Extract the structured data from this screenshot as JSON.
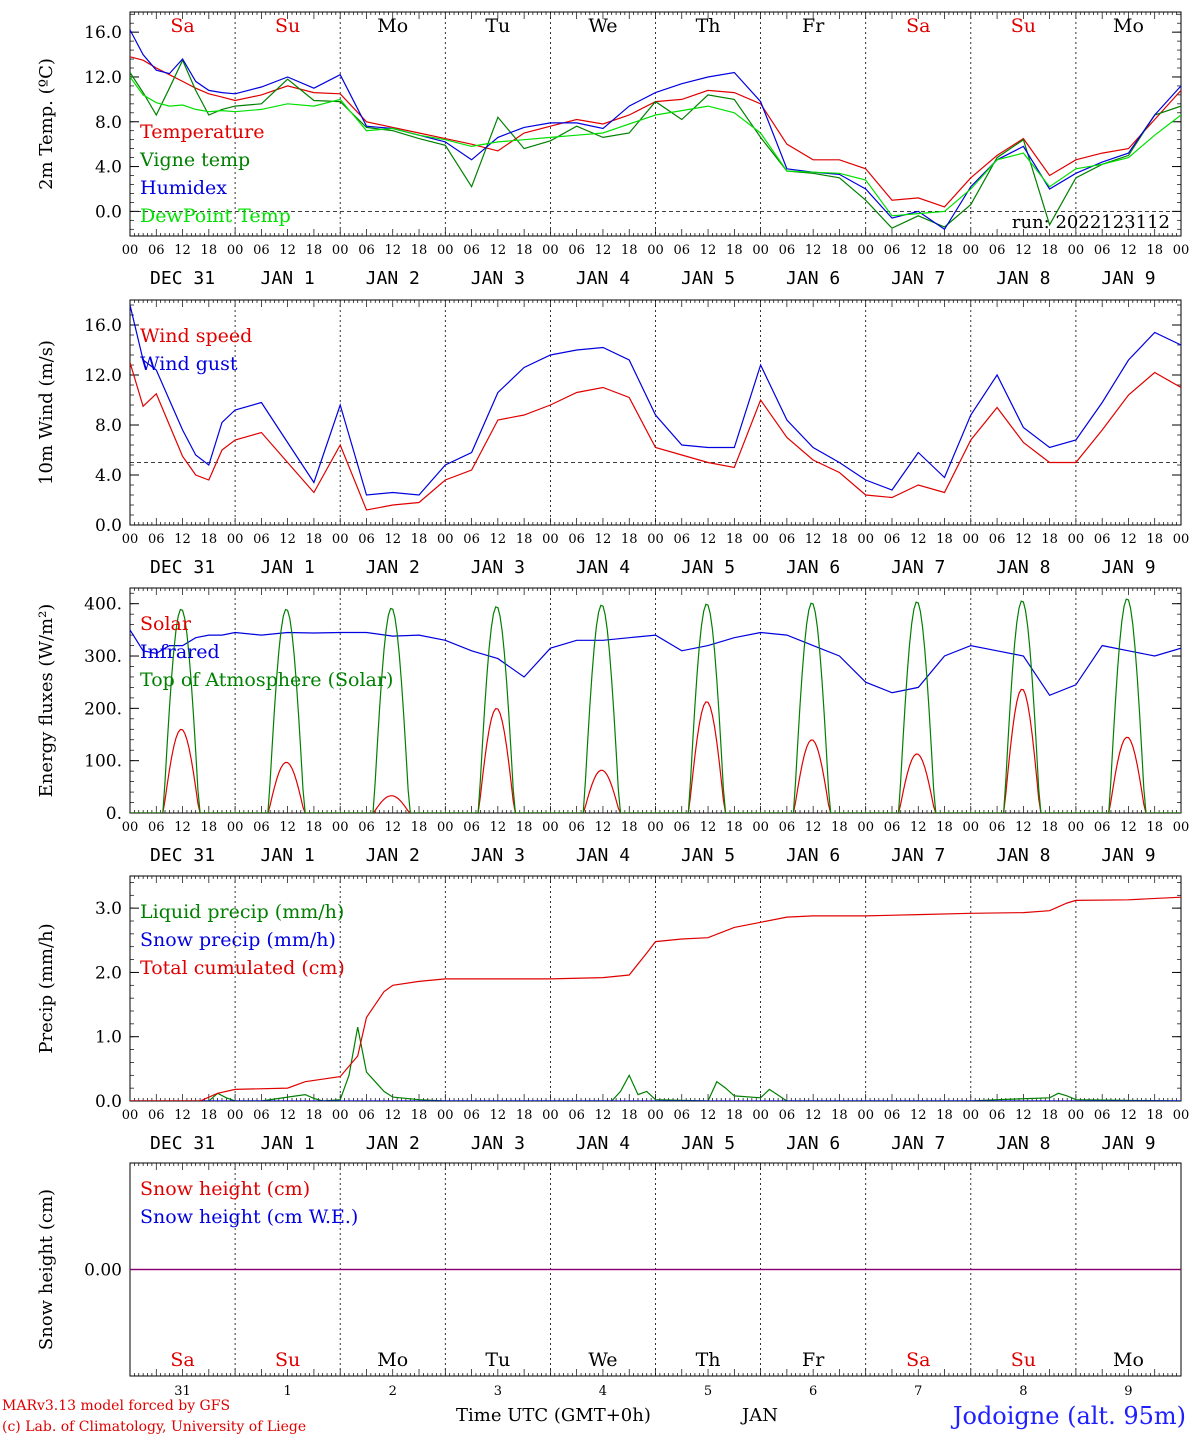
{
  "run_label": "run: 2022123112",
  "day_abbrevs": [
    {
      "text": "Sa",
      "color": "#e00000"
    },
    {
      "text": "Su",
      "color": "#e00000"
    },
    {
      "text": "Mo",
      "color": "#000000"
    },
    {
      "text": "Tu",
      "color": "#000000"
    },
    {
      "text": "We",
      "color": "#000000"
    },
    {
      "text": "Th",
      "color": "#000000"
    },
    {
      "text": "Fr",
      "color": "#000000"
    },
    {
      "text": "Sa",
      "color": "#e00000"
    },
    {
      "text": "Su",
      "color": "#e00000"
    },
    {
      "text": "Mo",
      "color": "#000000"
    }
  ],
  "date_labels": [
    "DEC 31",
    "JAN  1",
    "JAN  2",
    "JAN  3",
    "JAN  4",
    "JAN  5",
    "JAN  6",
    "JAN  7",
    "JAN  8",
    "JAN  9"
  ],
  "hour_ticks": [
    "00",
    "06",
    "12",
    "18"
  ],
  "last_hour_tick": "00",
  "bottom_day_numbers": [
    "31",
    "1",
    "2",
    "3",
    "4",
    "5",
    "6",
    "7",
    "8",
    "9"
  ],
  "footer": {
    "model_line": "MARv3.13 model forced by GFS",
    "credit_line": "(c) Lab. of Climatology, University of Liege",
    "time_label": "Time UTC (GMT+0h)",
    "month_label": "JAN",
    "station_label": "Jodoigne (alt. 95m)"
  },
  "colors": {
    "red": "#e00000",
    "green": "#008000",
    "blue": "#0000e0",
    "lightgreen": "#00e000",
    "purple": "#800080",
    "axis": "#000000"
  },
  "chart_data": [
    {
      "id": "temp",
      "type": "line",
      "ylabel": "2m Temp. (ºC)",
      "ylim": [
        -2.2,
        17.8
      ],
      "yticks": [
        "16.0",
        "12.0",
        "8.0",
        "4.0",
        "0.0"
      ],
      "ytick_values": [
        16,
        12,
        8,
        4,
        0
      ],
      "minor_step": 0.8,
      "ref_line": 0,
      "x_unit": "hours since 2022-12-31 00 UTC",
      "xlim": [
        0,
        240
      ],
      "series": [
        {
          "name": "Temperature",
          "color": "#e00000",
          "x": [
            0,
            3,
            6,
            9,
            12,
            15,
            18,
            21,
            24,
            30,
            36,
            42,
            48,
            54,
            60,
            66,
            72,
            78,
            84,
            90,
            96,
            102,
            108,
            114,
            120,
            126,
            132,
            138,
            144,
            150,
            156,
            162,
            168,
            174,
            180,
            186,
            192,
            198,
            204,
            210,
            216,
            222,
            228,
            234,
            240
          ],
          "y": [
            13.8,
            13.5,
            12.8,
            12.2,
            11.6,
            11.0,
            10.5,
            10.2,
            9.9,
            10.4,
            11.2,
            10.6,
            10.5,
            8.0,
            7.5,
            7.0,
            6.5,
            6.0,
            5.4,
            7.0,
            7.6,
            8.2,
            7.8,
            8.6,
            9.8,
            10.0,
            10.8,
            10.6,
            9.6,
            6.0,
            4.6,
            4.6,
            3.8,
            1.0,
            1.2,
            0.4,
            3.0,
            5.0,
            6.5,
            3.2,
            4.6,
            5.2,
            5.6,
            8.2,
            10.8
          ]
        },
        {
          "name": "Vigne temp",
          "color": "#008000",
          "x": [
            0,
            3,
            6,
            9,
            12,
            15,
            18,
            21,
            24,
            30,
            36,
            42,
            48,
            54,
            60,
            66,
            72,
            78,
            84,
            90,
            96,
            102,
            108,
            114,
            120,
            126,
            132,
            138,
            144,
            150,
            156,
            162,
            168,
            174,
            180,
            186,
            192,
            198,
            204,
            210,
            216,
            222,
            228,
            234,
            240
          ],
          "y": [
            12.4,
            10.6,
            8.6,
            11.0,
            13.5,
            10.8,
            8.6,
            9.1,
            9.4,
            9.6,
            11.8,
            9.9,
            9.8,
            7.5,
            7.2,
            6.5,
            5.9,
            2.2,
            8.4,
            5.6,
            6.3,
            7.6,
            6.6,
            7.0,
            9.8,
            8.2,
            10.4,
            10.0,
            6.6,
            3.6,
            3.4,
            3.0,
            1.0,
            -1.5,
            -0.4,
            -1.4,
            0.6,
            4.8,
            6.4,
            -1.2,
            3.0,
            4.2,
            5.0,
            8.6,
            9.4
          ]
        },
        {
          "name": "Humidex",
          "color": "#0000e0",
          "x": [
            0,
            3,
            6,
            9,
            12,
            15,
            18,
            21,
            24,
            30,
            36,
            42,
            48,
            54,
            60,
            66,
            72,
            78,
            84,
            90,
            96,
            102,
            108,
            114,
            120,
            126,
            132,
            138,
            144,
            150,
            156,
            162,
            168,
            174,
            180,
            186,
            192,
            198,
            204,
            210,
            216,
            222,
            228,
            234,
            240
          ],
          "y": [
            16.2,
            14.0,
            12.6,
            12.3,
            13.6,
            11.6,
            10.8,
            10.6,
            10.5,
            11.1,
            12.0,
            11.0,
            12.2,
            7.6,
            7.4,
            6.8,
            6.2,
            4.6,
            6.6,
            7.5,
            7.9,
            7.9,
            7.4,
            9.4,
            10.6,
            11.4,
            12.0,
            12.4,
            9.8,
            3.8,
            3.5,
            3.3,
            2.0,
            -0.6,
            0.0,
            -1.6,
            2.2,
            4.6,
            5.8,
            2.0,
            3.4,
            4.4,
            5.2,
            8.6,
            11.2
          ]
        },
        {
          "name": "DewPoint Temp",
          "color": "#00e000",
          "x": [
            0,
            3,
            6,
            9,
            12,
            15,
            18,
            21,
            24,
            30,
            36,
            42,
            48,
            54,
            60,
            66,
            72,
            78,
            84,
            90,
            96,
            102,
            108,
            114,
            120,
            126,
            132,
            138,
            144,
            150,
            156,
            162,
            168,
            174,
            180,
            186,
            192,
            198,
            204,
            210,
            216,
            222,
            228,
            234,
            240
          ],
          "y": [
            12.0,
            10.4,
            9.7,
            9.4,
            9.5,
            9.1,
            8.9,
            9.0,
            8.9,
            9.1,
            9.6,
            9.4,
            10.0,
            7.2,
            7.4,
            6.8,
            6.4,
            5.8,
            6.2,
            6.4,
            6.6,
            6.8,
            7.0,
            7.8,
            8.6,
            9.0,
            9.4,
            8.8,
            7.0,
            3.6,
            3.5,
            3.4,
            2.8,
            -0.4,
            -0.2,
            0.0,
            2.0,
            4.6,
            5.2,
            2.2,
            3.8,
            4.2,
            4.8,
            6.8,
            8.6
          ]
        }
      ]
    },
    {
      "id": "wind",
      "type": "line",
      "ylabel": "10m Wind (m/s)",
      "ylim": [
        0,
        18
      ],
      "yticks": [
        "16.0",
        "12.0",
        "8.0",
        "4.0",
        "0.0"
      ],
      "ytick_values": [
        16,
        12,
        8,
        4,
        0
      ],
      "minor_step": 0.8,
      "ref_line": 5,
      "x_unit": "hours since 2022-12-31 00 UTC",
      "xlim": [
        0,
        240
      ],
      "series": [
        {
          "name": "Wind speed",
          "color": "#e00000",
          "x": [
            0,
            3,
            6,
            9,
            12,
            15,
            18,
            21,
            24,
            30,
            36,
            42,
            48,
            54,
            60,
            66,
            72,
            78,
            84,
            90,
            96,
            102,
            108,
            114,
            120,
            126,
            132,
            138,
            144,
            150,
            156,
            162,
            168,
            174,
            180,
            186,
            192,
            198,
            204,
            210,
            216,
            222,
            228,
            234,
            240
          ],
          "y": [
            13.0,
            9.5,
            10.5,
            8.0,
            5.5,
            4.0,
            3.6,
            6.0,
            6.8,
            7.4,
            5.0,
            2.6,
            6.4,
            1.2,
            1.6,
            1.8,
            3.6,
            4.4,
            8.4,
            8.8,
            9.6,
            10.6,
            11.0,
            10.2,
            6.2,
            5.6,
            5.0,
            4.6,
            10.0,
            7.0,
            5.2,
            4.2,
            2.4,
            2.2,
            3.2,
            2.6,
            6.8,
            9.4,
            6.6,
            5.0,
            5.0,
            7.6,
            10.4,
            12.2,
            11.0
          ]
        },
        {
          "name": "Wind gust",
          "color": "#0000e0",
          "x": [
            0,
            3,
            6,
            9,
            12,
            15,
            18,
            21,
            24,
            30,
            36,
            42,
            48,
            54,
            60,
            66,
            72,
            78,
            84,
            90,
            96,
            102,
            108,
            114,
            120,
            126,
            132,
            138,
            144,
            150,
            156,
            162,
            168,
            174,
            180,
            186,
            192,
            198,
            204,
            210,
            216,
            222,
            228,
            234,
            240
          ],
          "y": [
            17.6,
            13.2,
            12.4,
            10.0,
            7.6,
            5.6,
            4.8,
            8.2,
            9.2,
            9.8,
            6.6,
            3.4,
            9.6,
            2.4,
            2.6,
            2.4,
            4.8,
            5.8,
            10.6,
            12.6,
            13.6,
            14.0,
            14.2,
            13.2,
            8.8,
            6.4,
            6.2,
            6.2,
            12.8,
            8.4,
            6.2,
            5.0,
            3.6,
            2.8,
            5.8,
            3.8,
            8.8,
            12.0,
            7.8,
            6.2,
            6.8,
            9.8,
            13.2,
            15.4,
            14.4
          ]
        }
      ]
    },
    {
      "id": "energy",
      "type": "line",
      "ylabel": "Energy fluxes (W/m²)",
      "ylim": [
        0,
        430
      ],
      "yticks": [
        "400.",
        "300.",
        "200.",
        "100.",
        "0."
      ],
      "ytick_values": [
        400,
        300,
        200,
        100,
        0
      ],
      "minor_step": 20,
      "ref_line": null,
      "x_unit": "hours since 2022-12-31 00 UTC",
      "xlim": [
        0,
        240
      ],
      "diurnal_peaks": {
        "solar": [
          160,
          97,
          33,
          200,
          82,
          213,
          140,
          113,
          237,
          145
        ],
        "toa": [
          390,
          390,
          392,
          395,
          398,
          400,
          402,
          404,
          406,
          410
        ],
        "sunrise_hour": 7.6,
        "sunset_hour": 15.8
      },
      "series": [
        {
          "name": "Solar",
          "color": "#e00000",
          "values_from": "diurnal_peaks.solar"
        },
        {
          "name": "Infrared",
          "color": "#0000e0",
          "x": [
            0,
            3,
            6,
            9,
            12,
            15,
            18,
            21,
            24,
            30,
            36,
            42,
            48,
            54,
            60,
            66,
            72,
            78,
            84,
            90,
            96,
            102,
            108,
            114,
            120,
            126,
            132,
            138,
            144,
            150,
            156,
            162,
            168,
            174,
            180,
            186,
            192,
            198,
            204,
            210,
            216,
            222,
            228,
            234,
            240
          ],
          "y": [
            350,
            310,
            305,
            320,
            320,
            335,
            340,
            340,
            345,
            340,
            345,
            344,
            345,
            345,
            338,
            340,
            330,
            310,
            295,
            260,
            315,
            330,
            330,
            335,
            340,
            310,
            320,
            335,
            345,
            340,
            320,
            300,
            250,
            230,
            240,
            300,
            320,
            310,
            300,
            225,
            245,
            320,
            310,
            300,
            315
          ]
        },
        {
          "name": "Top of Atmosphere (Solar)",
          "color": "#008000",
          "values_from": "diurnal_peaks.toa"
        }
      ]
    },
    {
      "id": "precip",
      "type": "line",
      "ylabel": "Precip (mm/h)",
      "ylim": [
        0,
        3.5
      ],
      "yticks": [
        "3.0",
        "2.0",
        "1.0",
        "0.0"
      ],
      "ytick_values": [
        3,
        2,
        1,
        0
      ],
      "minor_step": 0.2,
      "ref_line": null,
      "x_unit": "hours since 2022-12-31 00 UTC",
      "xlim": [
        0,
        240
      ],
      "series": [
        {
          "name": "Liquid precip (mm/h)",
          "color": "#008000",
          "x": [
            0,
            18,
            20,
            22,
            24,
            30,
            36,
            40,
            42,
            44,
            48,
            50,
            52,
            54,
            56,
            58,
            60,
            66,
            72,
            110,
            112,
            114,
            116,
            118,
            120,
            132,
            134,
            136,
            138,
            144,
            146,
            150,
            192,
            198,
            210,
            212,
            214,
            216,
            240
          ],
          "y": [
            0,
            0,
            0.12,
            0.05,
            0,
            0,
            0.06,
            0.1,
            0.04,
            0,
            0.02,
            0.4,
            1.15,
            0.45,
            0.3,
            0.15,
            0.06,
            0.02,
            0,
            0,
            0.15,
            0.4,
            0.1,
            0.15,
            0.02,
            0,
            0.3,
            0.2,
            0.08,
            0.05,
            0.18,
            0,
            0,
            0.02,
            0.05,
            0.12,
            0.08,
            0.02,
            0
          ]
        },
        {
          "name": "Snow precip (mm/h)",
          "color": "#0000e0",
          "x": [
            0,
            240
          ],
          "y": [
            0,
            0
          ]
        },
        {
          "name": "Total cumulated (cm)",
          "color": "#e00000",
          "x": [
            0,
            16,
            20,
            24,
            36,
            40,
            48,
            52,
            54,
            56,
            58,
            60,
            66,
            72,
            84,
            96,
            108,
            114,
            118,
            120,
            126,
            132,
            138,
            144,
            150,
            156,
            168,
            180,
            192,
            204,
            210,
            214,
            216,
            228,
            240
          ],
          "y": [
            0,
            0,
            0.12,
            0.18,
            0.2,
            0.3,
            0.38,
            0.7,
            1.3,
            1.5,
            1.7,
            1.8,
            1.86,
            1.9,
            1.9,
            1.9,
            1.92,
            1.96,
            2.3,
            2.48,
            2.52,
            2.54,
            2.7,
            2.78,
            2.86,
            2.88,
            2.88,
            2.9,
            2.92,
            2.93,
            2.96,
            3.08,
            3.12,
            3.13,
            3.17
          ]
        }
      ]
    },
    {
      "id": "snow",
      "type": "line",
      "ylabel": "Snow height (cm)",
      "ylim": [
        -1,
        1
      ],
      "yticks": [
        "0.00"
      ],
      "ytick_values": [
        0
      ],
      "minor_step": null,
      "ref_line": null,
      "x_unit": "hours since 2022-12-31 00 UTC",
      "xlim": [
        0,
        240
      ],
      "series": [
        {
          "name": "Snow height (cm)",
          "color": "#e00000",
          "x": [
            0,
            240
          ],
          "y": [
            0,
            0
          ]
        },
        {
          "name": "Snow height (cm W.E.)",
          "color": "#0000e0",
          "x": [
            0,
            240
          ],
          "y": [
            0,
            0
          ]
        }
      ]
    }
  ]
}
